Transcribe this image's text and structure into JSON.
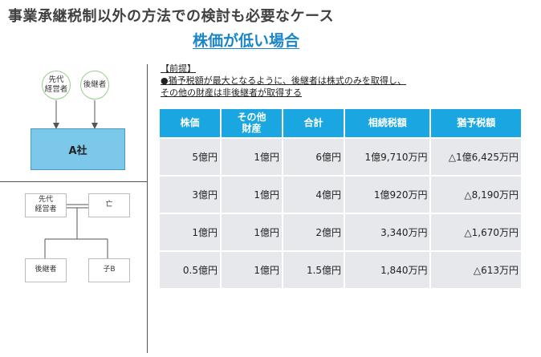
{
  "title": "事業承継税制以外の方法での検討も必要なケース",
  "subtitle": "株価が低い場合",
  "diagram_top": {
    "circles": [
      "先代\n経営者",
      "後継者"
    ],
    "company": "A社"
  },
  "family": {
    "predecessor": "先代\n経営者",
    "deceased": "亡",
    "successor": "後継者",
    "child_b": "子B"
  },
  "premise": {
    "header": "【前提】",
    "line1": "●猶予税額が最大となるように、後継者は株式のみを取得し、",
    "line2": "その他の財産は非後継者が取得する"
  },
  "table": {
    "headers": [
      "株価",
      "その他\n財産",
      "合計",
      "相続税額",
      "猶予税額"
    ],
    "rows": [
      [
        "5億円",
        "1億円",
        "6億円",
        "1億9,710万円",
        "△1億6,425万円"
      ],
      [
        "3億円",
        "1億円",
        "4億円",
        "1億920万円",
        "△8,190万円"
      ],
      [
        "1億円",
        "1億円",
        "2億円",
        "3,340万円",
        "△1,670万円"
      ],
      [
        "0.5億円",
        "1億円",
        "1.5億円",
        "1,840万円",
        "△613万円"
      ]
    ]
  },
  "colors": {
    "header_bg": "#1aa6e0",
    "cell_bg": "#e6e8ec",
    "subtitle": "#1a86c9",
    "company_box": "#7cc8ea",
    "circle_border": "#9bcc8c"
  }
}
